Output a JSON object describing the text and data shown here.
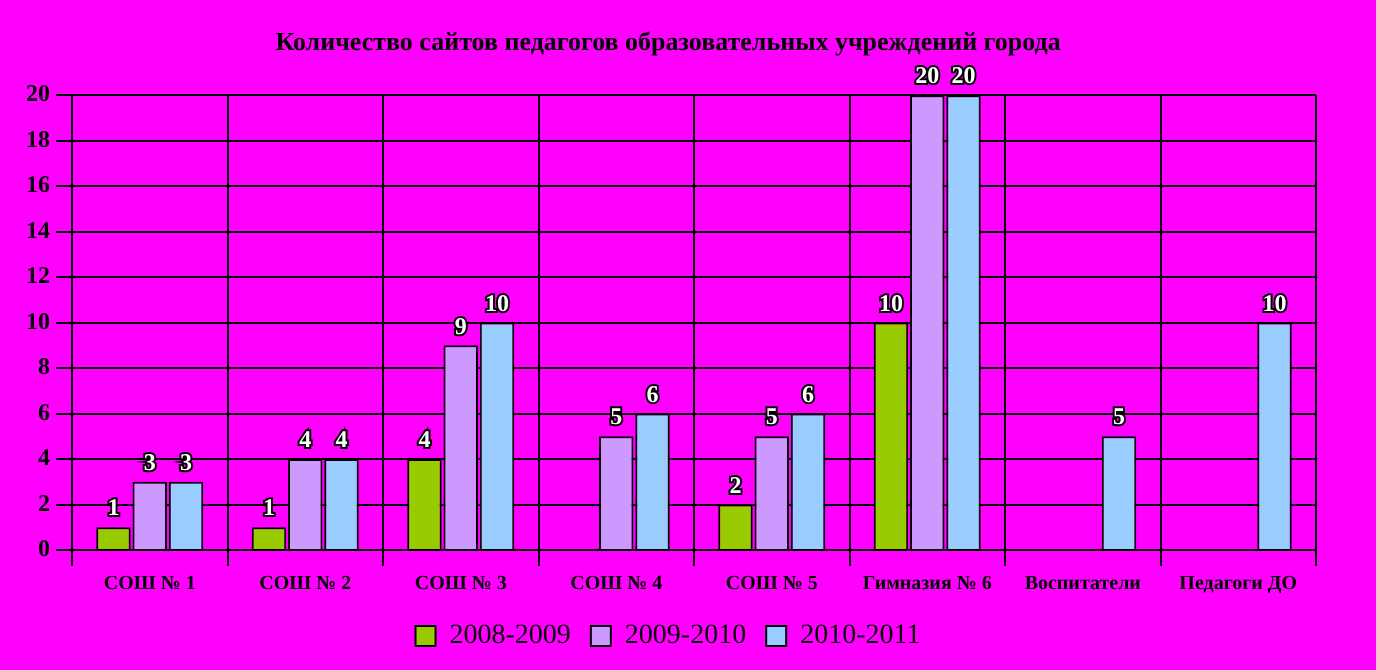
{
  "chart_data": {
    "type": "bar",
    "title": "Количество сайтов педагогов образовательных учреждений города",
    "categories": [
      "СОШ № 1",
      "СОШ № 2",
      "СОШ № 3",
      "СОШ № 4",
      "СОШ № 5",
      "Гимназия № 6",
      "Воспитатели",
      "Педагоги ДО"
    ],
    "series": [
      {
        "name": "2008-2009",
        "color": "#99cc00",
        "values": [
          1,
          1,
          4,
          null,
          2,
          10,
          null,
          null
        ]
      },
      {
        "name": "2009-2010",
        "color": "#cc99ff",
        "values": [
          3,
          4,
          9,
          5,
          5,
          20,
          null,
          null
        ]
      },
      {
        "name": "2010-2011",
        "color": "#99ccff",
        "values": [
          3,
          4,
          10,
          6,
          6,
          20,
          5,
          10
        ]
      }
    ],
    "ylim": [
      0,
      20
    ],
    "yticks": [
      0,
      2,
      4,
      6,
      8,
      10,
      12,
      14,
      16,
      18,
      20
    ],
    "grid": true,
    "legend": "bottom",
    "data_labels": true
  }
}
